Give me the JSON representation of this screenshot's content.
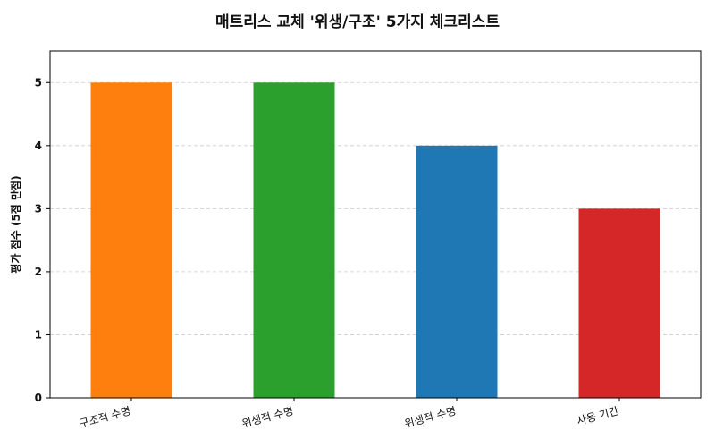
{
  "chart_data": {
    "type": "bar",
    "title": "매트리스 교체 '위생/구조' 5가지 체크리스트",
    "xlabel": "",
    "ylabel": "평가 점수 (5점 만점)",
    "categories": [
      "구조적 수명",
      "위생적 수명",
      "위생적 수명",
      "사용 기간"
    ],
    "values": [
      5,
      5,
      4,
      3
    ],
    "colors": [
      "#ff7f0e",
      "#2ca02c",
      "#1f77b4",
      "#d62728"
    ],
    "ylim": [
      0,
      5.5
    ],
    "yticks": [
      0,
      1,
      2,
      3,
      4,
      5
    ],
    "grid": true
  }
}
